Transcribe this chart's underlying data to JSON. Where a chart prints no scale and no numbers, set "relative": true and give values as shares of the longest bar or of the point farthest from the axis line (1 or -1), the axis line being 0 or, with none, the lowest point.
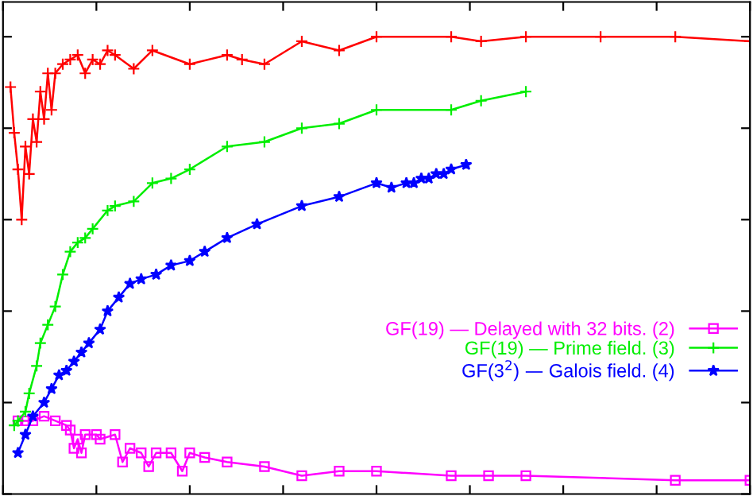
{
  "chart_data": {
    "type": "line",
    "relative": true,
    "grid": false,
    "legend": "right",
    "line_style": "solid",
    "categories": [
      null,
      null,
      null,
      null,
      null,
      null,
      null,
      null,
      null,
      null,
      null,
      null,
      null,
      null,
      null,
      null,
      null,
      null,
      null,
      null,
      null,
      null,
      null,
      null,
      null,
      null,
      null,
      null,
      null,
      null,
      null,
      null,
      null,
      null,
      null,
      null,
      null,
      null,
      null,
      null,
      null,
      null,
      null,
      null,
      null,
      null,
      null,
      null,
      null,
      null,
      null,
      null,
      null,
      null,
      null,
      null,
      null,
      null,
      null,
      null,
      null,
      null,
      null,
      null,
      null,
      null,
      null,
      null,
      null,
      null,
      null,
      null,
      null,
      null,
      null,
      null,
      null,
      null,
      null,
      null,
      null,
      null,
      null,
      null,
      null,
      null,
      null,
      null,
      null,
      null,
      null,
      null,
      null,
      null,
      null,
      null,
      null,
      null,
      null,
      null,
      null,
      null,
      null,
      null,
      null,
      null,
      null,
      null,
      null,
      null,
      null,
      null,
      null,
      null,
      null,
      null,
      null,
      null,
      null,
      null,
      null,
      null,
      null,
      null,
      null,
      null,
      null,
      null,
      null,
      null,
      null,
      null,
      null,
      null,
      null,
      null,
      null,
      null,
      null,
      null,
      null,
      null,
      null,
      null,
      null,
      null,
      null,
      null,
      null,
      null,
      null,
      null,
      null,
      null,
      null,
      null,
      null,
      null,
      null,
      null,
      null,
      null,
      null,
      null,
      null,
      null,
      null,
      null,
      null,
      null,
      null,
      null,
      null,
      null,
      null,
      null,
      null,
      null,
      null,
      null,
      null,
      null,
      null,
      null,
      null,
      null,
      null,
      null,
      null,
      null,
      null,
      null,
      null,
      null,
      null,
      null,
      null,
      null,
      null,
      null,
      null
    ],
    "series": [
      {
        "color": "#ff0000",
        "marker": "cross",
        "values": [
          null,
          null,
          0.89,
          0.79,
          0.71,
          0.6,
          0.76,
          0.7,
          0.82,
          0.77,
          0.88,
          0.82,
          0.92,
          0.84,
          0.92,
          null,
          0.94,
          null,
          0.95,
          null,
          0.96,
          null,
          0.92,
          null,
          0.95,
          null,
          0.94,
          null,
          0.97,
          null,
          0.96,
          null,
          null,
          null,
          null,
          0.93,
          null,
          null,
          null,
          null,
          0.97,
          null,
          null,
          null,
          null,
          null,
          null,
          null,
          null,
          null,
          0.94,
          null,
          null,
          null,
          null,
          null,
          null,
          null,
          null,
          null,
          0.96,
          null,
          null,
          null,
          0.95,
          null,
          null,
          null,
          null,
          null,
          0.94,
          null,
          null,
          null,
          null,
          null,
          null,
          null,
          null,
          null,
          0.99,
          null,
          null,
          null,
          null,
          null,
          null,
          null,
          null,
          null,
          0.97,
          null,
          null,
          null,
          null,
          null,
          null,
          null,
          null,
          null,
          1.0,
          null,
          null,
          null,
          null,
          null,
          null,
          null,
          null,
          null,
          null,
          null,
          null,
          null,
          null,
          null,
          null,
          null,
          null,
          null,
          1.0,
          null,
          null,
          null,
          null,
          null,
          null,
          null,
          0.99,
          null,
          null,
          null,
          null,
          null,
          null,
          null,
          null,
          null,
          null,
          null,
          1.0,
          null,
          null,
          null,
          null,
          null,
          null,
          null,
          null,
          null,
          null,
          null,
          null,
          null,
          null,
          null,
          null,
          null,
          null,
          null,
          1.0,
          null,
          null,
          null,
          null,
          null,
          null,
          null,
          null,
          null,
          null,
          null,
          null,
          null,
          null,
          null,
          null,
          null,
          null,
          null,
          1.0,
          null,
          null,
          null,
          null,
          null,
          null,
          null,
          null,
          null,
          null,
          null,
          null,
          null,
          null,
          null,
          null,
          null,
          null,
          null,
          0.99
        ]
      },
      {
        "name": "GF(19) — Delayed with 32 bits. (2)",
        "color": "#ff00ff",
        "marker": "square",
        "values": [
          null,
          null,
          null,
          null,
          0.16,
          null,
          0.16,
          null,
          0.16,
          null,
          null,
          0.17,
          null,
          null,
          0.16,
          null,
          null,
          0.15,
          0.14,
          0.1,
          0.12,
          0.09,
          0.13,
          null,
          null,
          0.13,
          0.12,
          null,
          null,
          null,
          0.13,
          null,
          0.07,
          null,
          0.1,
          null,
          null,
          0.09,
          null,
          0.06,
          null,
          0.09,
          null,
          null,
          null,
          0.09,
          null,
          null,
          0.05,
          null,
          0.09,
          null,
          null,
          null,
          0.08,
          null,
          null,
          null,
          null,
          null,
          0.07,
          null,
          null,
          null,
          null,
          null,
          null,
          null,
          null,
          null,
          0.06,
          null,
          null,
          null,
          null,
          null,
          null,
          null,
          null,
          null,
          0.04,
          null,
          null,
          null,
          null,
          null,
          null,
          null,
          null,
          null,
          0.05,
          null,
          null,
          null,
          null,
          null,
          null,
          null,
          null,
          null,
          0.05,
          null,
          null,
          null,
          null,
          null,
          null,
          null,
          null,
          null,
          null,
          null,
          null,
          null,
          null,
          null,
          null,
          null,
          null,
          null,
          0.04,
          null,
          null,
          null,
          null,
          null,
          null,
          null,
          null,
          null,
          0.04,
          null,
          null,
          null,
          null,
          null,
          null,
          null,
          null,
          null,
          0.04,
          null,
          null,
          null,
          null,
          null,
          null,
          null,
          null,
          null,
          null,
          null,
          null,
          null,
          null,
          null,
          null,
          null,
          null,
          null,
          null,
          null,
          null,
          null,
          null,
          null,
          null,
          null,
          null,
          null,
          null,
          null,
          null,
          null,
          null,
          null,
          null,
          null,
          null,
          null,
          0.03,
          null,
          null,
          null,
          null,
          null,
          null,
          null,
          null,
          null,
          null,
          null,
          null,
          null,
          null,
          null,
          null,
          null,
          null,
          null,
          0.03
        ]
      },
      {
        "name": "GF(19) — Prime field. (3)",
        "color": "#00ee00",
        "marker": "cross",
        "values": [
          null,
          null,
          null,
          0.15,
          0.16,
          null,
          0.18,
          0.22,
          null,
          0.28,
          0.33,
          null,
          0.37,
          null,
          0.41,
          null,
          0.48,
          null,
          0.53,
          null,
          0.55,
          null,
          0.56,
          null,
          0.58,
          null,
          null,
          null,
          0.62,
          null,
          0.63,
          null,
          null,
          null,
          null,
          0.64,
          null,
          null,
          null,
          null,
          0.68,
          null,
          null,
          null,
          null,
          0.69,
          null,
          null,
          null,
          null,
          0.71,
          null,
          null,
          null,
          null,
          null,
          null,
          null,
          null,
          null,
          0.76,
          null,
          null,
          null,
          null,
          null,
          null,
          null,
          null,
          null,
          0.77,
          null,
          null,
          null,
          null,
          null,
          null,
          null,
          null,
          null,
          0.8,
          null,
          null,
          null,
          null,
          null,
          null,
          null,
          null,
          null,
          0.81,
          null,
          null,
          null,
          null,
          null,
          null,
          null,
          null,
          null,
          0.84,
          null,
          null,
          null,
          null,
          null,
          null,
          null,
          null,
          null,
          null,
          null,
          null,
          null,
          null,
          null,
          null,
          null,
          null,
          null,
          0.84,
          null,
          null,
          null,
          null,
          null,
          null,
          null,
          0.86,
          null,
          null,
          null,
          null,
          null,
          null,
          null,
          null,
          null,
          null,
          null,
          0.88,
          null,
          null,
          null,
          null,
          null,
          null,
          null,
          null,
          null,
          null,
          null,
          null,
          null,
          null,
          null,
          null,
          null,
          null,
          null,
          null,
          null,
          null,
          null,
          null,
          null,
          null,
          null,
          null,
          null,
          null,
          null,
          null,
          null,
          null,
          null,
          null,
          null,
          null,
          null,
          null,
          null,
          null,
          null,
          null,
          null,
          null,
          null,
          null,
          null,
          null,
          null,
          null,
          null,
          null,
          null,
          null,
          null,
          null,
          null,
          null
        ]
      },
      {
        "name": "GF(3$^{2}$) — Galois field. (4)",
        "color": "#0000ff",
        "marker": "star",
        "values": [
          null,
          null,
          null,
          null,
          0.09,
          null,
          0.13,
          null,
          0.17,
          null,
          null,
          0.2,
          null,
          0.23,
          null,
          0.26,
          null,
          0.27,
          null,
          0.29,
          null,
          0.31,
          null,
          0.33,
          null,
          null,
          0.36,
          null,
          0.4,
          null,
          null,
          0.43,
          null,
          null,
          0.46,
          null,
          null,
          0.47,
          null,
          null,
          null,
          0.48,
          null,
          null,
          null,
          0.5,
          null,
          null,
          null,
          null,
          0.51,
          null,
          null,
          null,
          0.53,
          null,
          null,
          null,
          null,
          null,
          0.56,
          null,
          null,
          null,
          null,
          null,
          null,
          null,
          0.59,
          null,
          null,
          null,
          null,
          null,
          null,
          null,
          null,
          null,
          null,
          null,
          0.63,
          null,
          null,
          null,
          null,
          null,
          null,
          null,
          null,
          null,
          0.65,
          null,
          null,
          null,
          null,
          null,
          null,
          null,
          null,
          null,
          0.68,
          null,
          null,
          null,
          0.67,
          null,
          null,
          null,
          0.68,
          null,
          0.68,
          null,
          0.69,
          null,
          0.69,
          null,
          0.7,
          null,
          0.7,
          null,
          0.71,
          null,
          null,
          null,
          0.72,
          null,
          null,
          null,
          null,
          null,
          null,
          null,
          null,
          null,
          null,
          null,
          null,
          null,
          null,
          null,
          null,
          null,
          null,
          null,
          null,
          null,
          null,
          null,
          null,
          null,
          null,
          null,
          null,
          null,
          null,
          null,
          null,
          null,
          null,
          null,
          null,
          null,
          null,
          null,
          null,
          null,
          null,
          null,
          null,
          null,
          null,
          null,
          null,
          null,
          null,
          null,
          null,
          null,
          null,
          null,
          null,
          null,
          null,
          null,
          null,
          null,
          null,
          null,
          null,
          null,
          null,
          null,
          null,
          null,
          null,
          null,
          null,
          null,
          null,
          null,
          null
        ]
      }
    ]
  }
}
